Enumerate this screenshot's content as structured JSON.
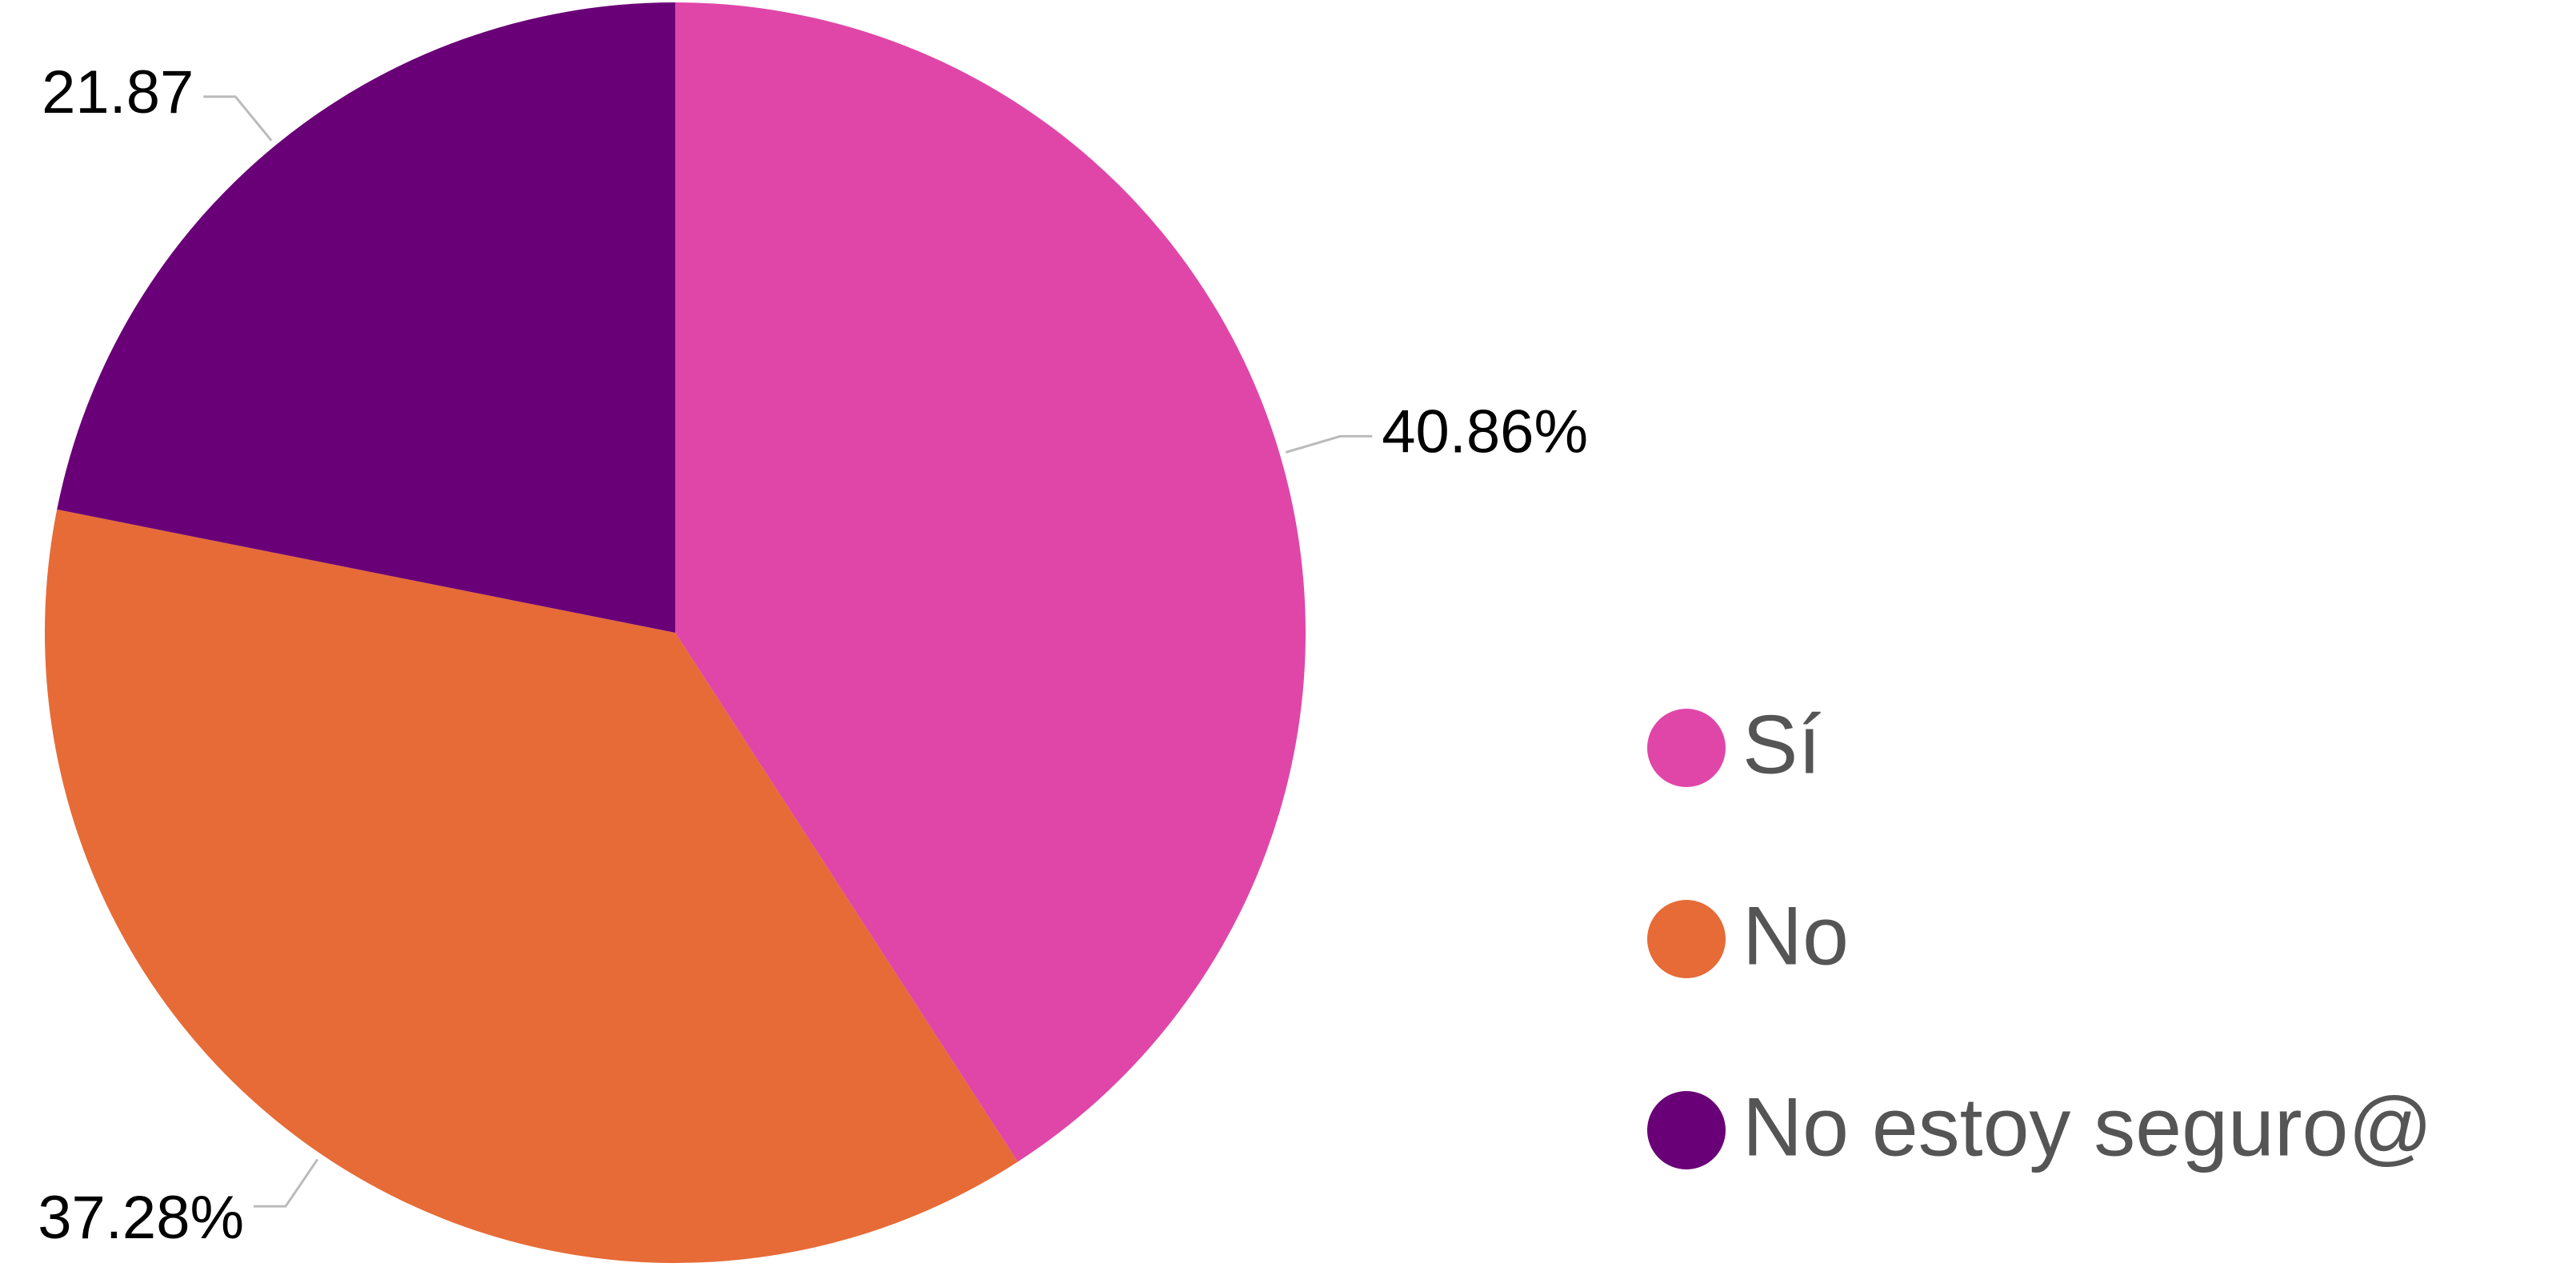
{
  "chart_data": {
    "type": "pie",
    "categories": [
      "Sí",
      "No",
      "No estoy seguro@"
    ],
    "values": [
      40.86,
      37.28,
      21.87
    ],
    "value_labels": [
      "40.86%",
      "37.28%",
      "21.87"
    ],
    "colors": [
      "#e046a8",
      "#e66b37",
      "#6a0077"
    ],
    "legend": "right"
  }
}
